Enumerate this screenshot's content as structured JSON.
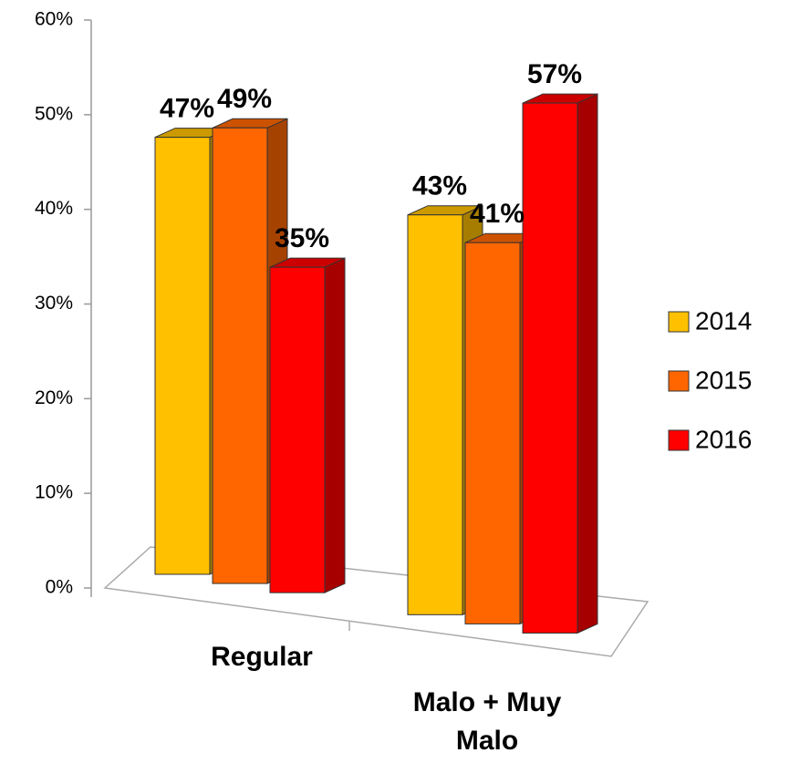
{
  "chart_data": {
    "type": "bar3d",
    "categories": [
      "Regular",
      "Malo + Muy Malo"
    ],
    "series": [
      {
        "name": "2014",
        "color": "#FFC000",
        "values": [
          47,
          43
        ],
        "value_labels": [
          "47%",
          "43%"
        ]
      },
      {
        "name": "2015",
        "color": "#FF6600",
        "values": [
          49,
          41
        ],
        "value_labels": [
          "49%",
          "41%"
        ]
      },
      {
        "name": "2016",
        "color": "#FF0000",
        "values": [
          35,
          57
        ],
        "value_labels": [
          "35%",
          "57%"
        ]
      }
    ],
    "ylim": [
      0,
      60
    ],
    "yticks": [
      {
        "value": 0,
        "label": "0%"
      },
      {
        "value": 10,
        "label": "10%"
      },
      {
        "value": 20,
        "label": "20%"
      },
      {
        "value": 30,
        "label": "30%"
      },
      {
        "value": 40,
        "label": "40%"
      },
      {
        "value": 50,
        "label": "50%"
      },
      {
        "value": 60,
        "label": "60%"
      }
    ],
    "legend": "right"
  }
}
